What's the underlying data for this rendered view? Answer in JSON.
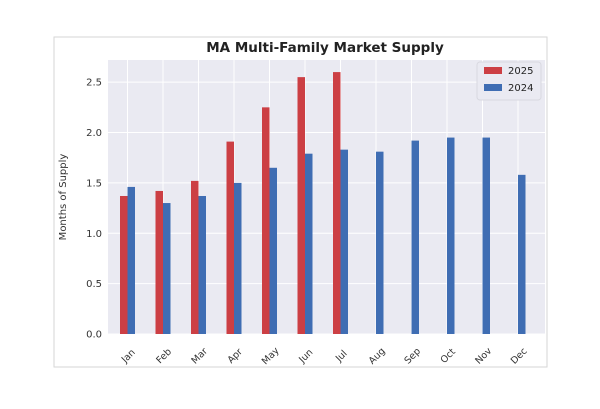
{
  "chart_data": {
    "type": "bar",
    "title": "MA Multi-Family Market Supply",
    "xlabel": "",
    "ylabel": "Months of Supply",
    "categories": [
      "Jan",
      "Feb",
      "Mar",
      "Apr",
      "May",
      "Jun",
      "Jul",
      "Aug",
      "Sep",
      "Oct",
      "Nov",
      "Dec"
    ],
    "series": [
      {
        "name": "2025",
        "color": "#cc3f44",
        "values": [
          1.37,
          1.42,
          1.52,
          1.91,
          2.25,
          2.55,
          2.6,
          null,
          null,
          null,
          null,
          null
        ]
      },
      {
        "name": "2024",
        "color": "#3f6db3",
        "values": [
          1.46,
          1.3,
          1.37,
          1.5,
          1.65,
          1.79,
          1.83,
          1.81,
          1.92,
          1.95,
          1.95,
          1.58
        ]
      }
    ],
    "yticks": [
      "0.0",
      "0.5",
      "1.0",
      "1.5",
      "2.0",
      "2.5"
    ],
    "ylim": [
      0,
      2.72
    ],
    "grid": true,
    "legend": "top-right",
    "background": "#eaeaf2"
  }
}
